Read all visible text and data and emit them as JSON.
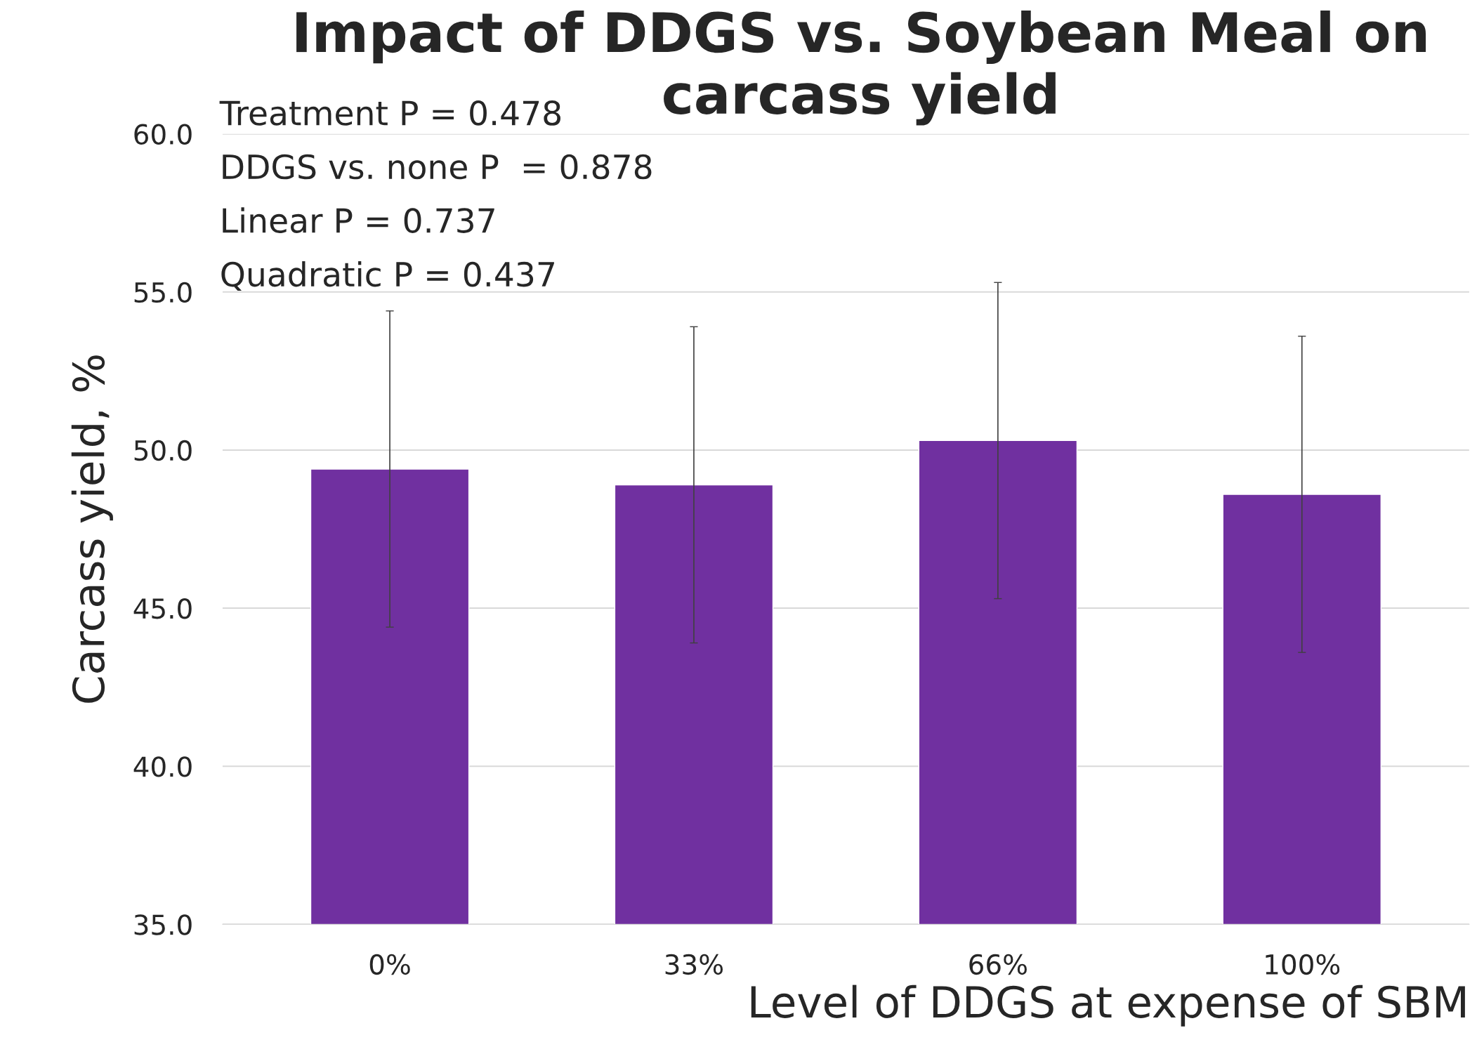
{
  "chart_data": {
    "type": "bar",
    "title": "Impact of DDGS vs. Soybean Meal on carcass yield",
    "xlabel": "Level of DDGS at expense of SBM",
    "ylabel": "Carcass yield, %",
    "categories": [
      "0%",
      "33%",
      "66%",
      "100%"
    ],
    "values": [
      49.4,
      48.9,
      50.3,
      48.6
    ],
    "errors": [
      5.0,
      5.0,
      5.0,
      5.0
    ],
    "color": "#7030a0",
    "ylim": [
      35,
      60
    ],
    "yticks": [
      {
        "value": 35,
        "label": "35.0"
      },
      {
        "value": 40,
        "label": "40.0"
      },
      {
        "value": 45,
        "label": "45.0"
      },
      {
        "value": 50,
        "label": "50.0"
      },
      {
        "value": 55,
        "label": "55.0"
      },
      {
        "value": 60,
        "label": "60.0"
      }
    ],
    "grid": "y",
    "annotations": [
      "Treatment P = 0.478",
      "DDGS vs. none P  = 0.878",
      "Linear P = 0.737",
      "Quadratic P = 0.437"
    ]
  }
}
